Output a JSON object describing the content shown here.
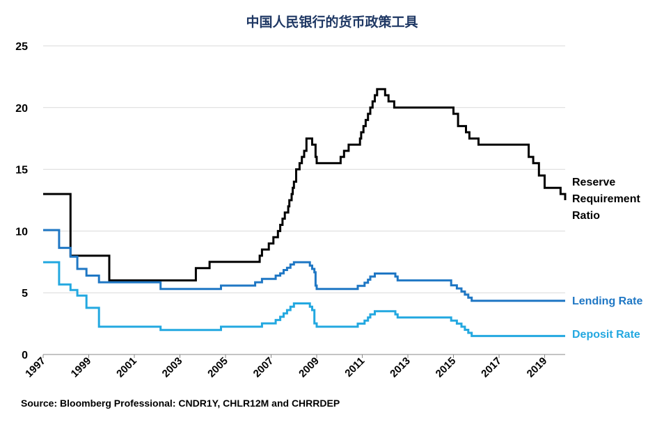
{
  "chart_data": {
    "type": "line",
    "title": "中国人民银行的货币政策工具",
    "source": "Source: Bloomberg Professional: CNDR1Y, CHLR12M and CHRRDEP",
    "xlim": [
      1997,
      2019.9
    ],
    "ylim": [
      0,
      25
    ],
    "yticks": [
      "0",
      "5",
      "10",
      "15",
      "20",
      "25"
    ],
    "xticks": [
      "1997",
      "1999",
      "2001",
      "2003",
      "2005",
      "2007",
      "2009",
      "2011",
      "2013",
      "2015",
      "2017",
      "2019"
    ],
    "grid": true,
    "series": [
      {
        "name": "Reserve Requirement Ratio",
        "label_lines": [
          "Reserve",
          "Requirement",
          "Ratio"
        ],
        "color": "#000000",
        "points": [
          [
            1997.0,
            13
          ],
          [
            1998.2,
            13
          ],
          [
            1998.2,
            8
          ],
          [
            1999.9,
            8
          ],
          [
            1999.9,
            6
          ],
          [
            2003.7,
            6
          ],
          [
            2003.7,
            7
          ],
          [
            2004.3,
            7
          ],
          [
            2004.3,
            7.5
          ],
          [
            2006.5,
            7.5
          ],
          [
            2006.5,
            8
          ],
          [
            2006.6,
            8
          ],
          [
            2006.6,
            8.5
          ],
          [
            2006.9,
            8.5
          ],
          [
            2006.9,
            9
          ],
          [
            2007.1,
            9
          ],
          [
            2007.1,
            9.5
          ],
          [
            2007.3,
            9.5
          ],
          [
            2007.3,
            10
          ],
          [
            2007.4,
            10
          ],
          [
            2007.4,
            10.5
          ],
          [
            2007.5,
            10.5
          ],
          [
            2007.5,
            11
          ],
          [
            2007.6,
            11
          ],
          [
            2007.6,
            11.5
          ],
          [
            2007.75,
            11.5
          ],
          [
            2007.75,
            12
          ],
          [
            2007.8,
            12
          ],
          [
            2007.8,
            12.5
          ],
          [
            2007.9,
            12.5
          ],
          [
            2007.9,
            13
          ],
          [
            2007.95,
            13
          ],
          [
            2007.95,
            13.5
          ],
          [
            2008.0,
            13.5
          ],
          [
            2008.0,
            14
          ],
          [
            2008.1,
            14
          ],
          [
            2008.1,
            15
          ],
          [
            2008.25,
            15
          ],
          [
            2008.25,
            15.5
          ],
          [
            2008.35,
            15.5
          ],
          [
            2008.35,
            16
          ],
          [
            2008.45,
            16
          ],
          [
            2008.45,
            16.5
          ],
          [
            2008.55,
            16.5
          ],
          [
            2008.55,
            17.5
          ],
          [
            2008.8,
            17.5
          ],
          [
            2008.8,
            17
          ],
          [
            2008.95,
            17
          ],
          [
            2008.95,
            16
          ],
          [
            2009.0,
            16
          ],
          [
            2009.0,
            15.5
          ],
          [
            2010.05,
            15.5
          ],
          [
            2010.05,
            16
          ],
          [
            2010.2,
            16
          ],
          [
            2010.2,
            16.5
          ],
          [
            2010.4,
            16.5
          ],
          [
            2010.4,
            17
          ],
          [
            2010.9,
            17
          ],
          [
            2010.9,
            17.5
          ],
          [
            2010.95,
            17.5
          ],
          [
            2010.95,
            18
          ],
          [
            2011.05,
            18
          ],
          [
            2011.05,
            18.5
          ],
          [
            2011.15,
            18.5
          ],
          [
            2011.15,
            19
          ],
          [
            2011.25,
            19
          ],
          [
            2011.25,
            19.5
          ],
          [
            2011.35,
            19.5
          ],
          [
            2011.35,
            20
          ],
          [
            2011.45,
            20
          ],
          [
            2011.45,
            20.5
          ],
          [
            2011.55,
            20.5
          ],
          [
            2011.55,
            21
          ],
          [
            2011.65,
            21
          ],
          [
            2011.65,
            21.5
          ],
          [
            2012.0,
            21.5
          ],
          [
            2012.0,
            21
          ],
          [
            2012.15,
            21
          ],
          [
            2012.15,
            20.5
          ],
          [
            2012.4,
            20.5
          ],
          [
            2012.4,
            20
          ],
          [
            2015.0,
            20
          ],
          [
            2015.0,
            19.5
          ],
          [
            2015.2,
            19.5
          ],
          [
            2015.2,
            18.5
          ],
          [
            2015.55,
            18.5
          ],
          [
            2015.55,
            18
          ],
          [
            2015.7,
            18
          ],
          [
            2015.7,
            17.5
          ],
          [
            2016.1,
            17.5
          ],
          [
            2016.1,
            17
          ],
          [
            2018.3,
            17
          ],
          [
            2018.3,
            16
          ],
          [
            2018.5,
            16
          ],
          [
            2018.5,
            15.5
          ],
          [
            2018.75,
            15.5
          ],
          [
            2018.75,
            14.5
          ],
          [
            2019.0,
            14.5
          ],
          [
            2019.0,
            13.5
          ],
          [
            2019.7,
            13.5
          ],
          [
            2019.7,
            13
          ],
          [
            2019.9,
            13
          ],
          [
            2019.9,
            12.5
          ]
        ]
      },
      {
        "name": "Lending Rate",
        "label_lines": [
          "Lending Rate"
        ],
        "color": "#1f77c4",
        "points": [
          [
            1997.0,
            10.08
          ],
          [
            1997.7,
            10.08
          ],
          [
            1997.7,
            8.64
          ],
          [
            1998.2,
            8.64
          ],
          [
            1998.2,
            7.92
          ],
          [
            1998.5,
            7.92
          ],
          [
            1998.5,
            6.93
          ],
          [
            1998.9,
            6.93
          ],
          [
            1998.9,
            6.39
          ],
          [
            1999.45,
            6.39
          ],
          [
            1999.45,
            5.85
          ],
          [
            2002.15,
            5.85
          ],
          [
            2002.15,
            5.31
          ],
          [
            2004.8,
            5.31
          ],
          [
            2004.8,
            5.58
          ],
          [
            2006.3,
            5.58
          ],
          [
            2006.3,
            5.85
          ],
          [
            2006.6,
            5.85
          ],
          [
            2006.6,
            6.12
          ],
          [
            2007.2,
            6.12
          ],
          [
            2007.2,
            6.39
          ],
          [
            2007.4,
            6.39
          ],
          [
            2007.4,
            6.57
          ],
          [
            2007.55,
            6.57
          ],
          [
            2007.55,
            6.84
          ],
          [
            2007.7,
            6.84
          ],
          [
            2007.7,
            7.02
          ],
          [
            2007.85,
            7.02
          ],
          [
            2007.85,
            7.29
          ],
          [
            2008.0,
            7.29
          ],
          [
            2008.0,
            7.47
          ],
          [
            2008.7,
            7.47
          ],
          [
            2008.7,
            7.2
          ],
          [
            2008.8,
            7.2
          ],
          [
            2008.8,
            6.93
          ],
          [
            2008.9,
            6.93
          ],
          [
            2008.9,
            6.66
          ],
          [
            2008.95,
            6.66
          ],
          [
            2008.95,
            5.58
          ],
          [
            2009.0,
            5.58
          ],
          [
            2009.0,
            5.31
          ],
          [
            2010.8,
            5.31
          ],
          [
            2010.8,
            5.56
          ],
          [
            2011.1,
            5.56
          ],
          [
            2011.1,
            5.81
          ],
          [
            2011.25,
            5.81
          ],
          [
            2011.25,
            6.06
          ],
          [
            2011.35,
            6.06
          ],
          [
            2011.35,
            6.31
          ],
          [
            2011.55,
            6.31
          ],
          [
            2011.55,
            6.56
          ],
          [
            2012.45,
            6.56
          ],
          [
            2012.45,
            6.31
          ],
          [
            2012.55,
            6.31
          ],
          [
            2012.55,
            6.0
          ],
          [
            2014.9,
            6.0
          ],
          [
            2014.9,
            5.6
          ],
          [
            2015.15,
            5.6
          ],
          [
            2015.15,
            5.35
          ],
          [
            2015.35,
            5.35
          ],
          [
            2015.35,
            5.1
          ],
          [
            2015.5,
            5.1
          ],
          [
            2015.5,
            4.85
          ],
          [
            2015.65,
            4.85
          ],
          [
            2015.65,
            4.6
          ],
          [
            2015.8,
            4.6
          ],
          [
            2015.8,
            4.35
          ],
          [
            2019.9,
            4.35
          ]
        ]
      },
      {
        "name": "Deposit Rate",
        "label_lines": [
          "Deposit Rate"
        ],
        "color": "#23a8e0",
        "points": [
          [
            1997.0,
            7.47
          ],
          [
            1997.7,
            7.47
          ],
          [
            1997.7,
            5.67
          ],
          [
            1998.2,
            5.67
          ],
          [
            1998.2,
            5.22
          ],
          [
            1998.5,
            5.22
          ],
          [
            1998.5,
            4.77
          ],
          [
            1998.9,
            4.77
          ],
          [
            1998.9,
            3.78
          ],
          [
            1999.45,
            3.78
          ],
          [
            1999.45,
            2.25
          ],
          [
            2002.15,
            2.25
          ],
          [
            2002.15,
            1.98
          ],
          [
            2004.8,
            1.98
          ],
          [
            2004.8,
            2.25
          ],
          [
            2006.6,
            2.25
          ],
          [
            2006.6,
            2.52
          ],
          [
            2007.2,
            2.52
          ],
          [
            2007.2,
            2.79
          ],
          [
            2007.4,
            2.79
          ],
          [
            2007.4,
            3.06
          ],
          [
            2007.55,
            3.06
          ],
          [
            2007.55,
            3.33
          ],
          [
            2007.7,
            3.33
          ],
          [
            2007.7,
            3.6
          ],
          [
            2007.85,
            3.6
          ],
          [
            2007.85,
            3.87
          ],
          [
            2008.0,
            3.87
          ],
          [
            2008.0,
            4.14
          ],
          [
            2008.7,
            4.14
          ],
          [
            2008.7,
            3.87
          ],
          [
            2008.8,
            3.87
          ],
          [
            2008.8,
            3.6
          ],
          [
            2008.9,
            3.6
          ],
          [
            2008.9,
            2.52
          ],
          [
            2009.0,
            2.52
          ],
          [
            2009.0,
            2.25
          ],
          [
            2010.8,
            2.25
          ],
          [
            2010.8,
            2.5
          ],
          [
            2011.1,
            2.5
          ],
          [
            2011.1,
            2.75
          ],
          [
            2011.25,
            2.75
          ],
          [
            2011.25,
            3.0
          ],
          [
            2011.35,
            3.0
          ],
          [
            2011.35,
            3.25
          ],
          [
            2011.55,
            3.25
          ],
          [
            2011.55,
            3.5
          ],
          [
            2012.45,
            3.5
          ],
          [
            2012.45,
            3.25
          ],
          [
            2012.55,
            3.25
          ],
          [
            2012.55,
            3.0
          ],
          [
            2014.9,
            3.0
          ],
          [
            2014.9,
            2.75
          ],
          [
            2015.15,
            2.75
          ],
          [
            2015.15,
            2.5
          ],
          [
            2015.35,
            2.5
          ],
          [
            2015.35,
            2.25
          ],
          [
            2015.5,
            2.25
          ],
          [
            2015.5,
            2.0
          ],
          [
            2015.65,
            2.0
          ],
          [
            2015.65,
            1.75
          ],
          [
            2015.8,
            1.75
          ],
          [
            2015.8,
            1.5
          ],
          [
            2019.9,
            1.5
          ]
        ]
      }
    ]
  }
}
